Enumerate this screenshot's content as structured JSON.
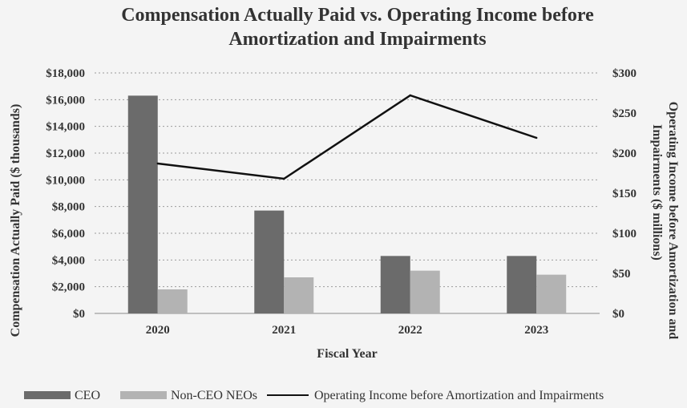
{
  "chart_data": {
    "type": "bar",
    "title_lines": [
      "Compensation Actually Paid vs. Operating Income before",
      "Amortization and Impairments"
    ],
    "xlabel": "Fiscal Year",
    "ylabel_left": "Compensation Actually Paid ($ thousands)",
    "ylabel_right_lines": [
      "Operating Income before Amortization and",
      "Impairments ($ millions)"
    ],
    "categories": [
      "2020",
      "2021",
      "2022",
      "2023"
    ],
    "ylim_left": [
      0,
      18000
    ],
    "yticks_left": [
      "$0",
      "$2,000",
      "$4,000",
      "$6,000",
      "$8,000",
      "$10,000",
      "$12,000",
      "$14,000",
      "$16,000",
      "$18,000"
    ],
    "ylim_right": [
      0,
      300
    ],
    "yticks_right": [
      "$0",
      "$50",
      "$100",
      "$150",
      "$200",
      "$250",
      "$300"
    ],
    "grid": true,
    "legend_position": "bottom",
    "series": [
      {
        "name": "CEO",
        "kind": "bar",
        "axis": "left",
        "color": "#6b6b6b",
        "values": [
          16300,
          7700,
          4300,
          4300
        ]
      },
      {
        "name": "Non-CEO NEOs",
        "kind": "bar",
        "axis": "left",
        "color": "#b3b3b3",
        "values": [
          1800,
          2700,
          3200,
          2900
        ]
      },
      {
        "name": "Operating Income before Amortization and Impairments",
        "kind": "line",
        "axis": "right",
        "color": "#111111",
        "values": [
          187,
          168,
          272,
          219
        ]
      }
    ]
  }
}
